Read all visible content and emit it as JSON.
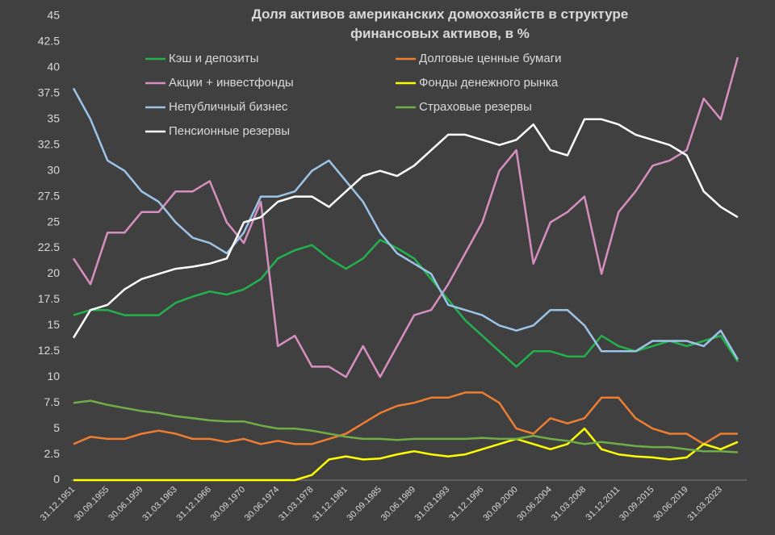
{
  "chart_data": {
    "type": "line",
    "title": "Доля активов американских домохозяйств в структуре финансовых активов, в %",
    "categories": [
      "31.12.1951",
      null,
      "30.09.1955",
      null,
      "30.06.1959",
      null,
      "31.03.1963",
      null,
      "31.12.1966",
      null,
      "30.09.1970",
      null,
      "30.06.1974",
      null,
      "31.03.1978",
      null,
      "31.12.1981",
      null,
      "30.09.1985",
      null,
      "30.06.1989",
      null,
      "31.03.1993",
      null,
      "31.12.1996",
      null,
      "30.09.2000",
      null,
      "30.06.2004",
      null,
      "31.03.2008",
      null,
      "31.12.2011",
      null,
      "30.09.2015",
      null,
      "30.06.2019",
      null,
      "31.03.2023",
      null
    ],
    "ylim": [
      0,
      45
    ],
    "yticks": [
      0,
      2.5,
      5,
      7.5,
      10,
      12.5,
      15,
      17.5,
      20,
      22.5,
      25,
      27.5,
      30,
      32.5,
      35,
      37.5,
      40,
      42.5,
      45
    ],
    "grid": false,
    "series": [
      {
        "name": "Кэш и депозиты",
        "color": "#22b14c",
        "values": [
          16,
          16.5,
          16.5,
          16,
          16,
          16,
          17.2,
          17.8,
          18.3,
          18,
          18.5,
          19.5,
          21.5,
          22.3,
          22.8,
          21.5,
          20.5,
          21.5,
          23.3,
          22.5,
          21.5,
          19.5,
          17.5,
          15.5,
          14,
          12.5,
          11,
          12.5,
          12.5,
          12,
          12,
          14,
          13,
          12.5,
          13,
          13.5,
          13,
          13.5,
          14,
          11.5
        ]
      },
      {
        "name": "Долговые ценные бумаги",
        "color": "#ed7d31",
        "values": [
          3.5,
          4.2,
          4,
          4,
          4.5,
          4.8,
          4.5,
          4,
          4,
          3.7,
          4,
          3.5,
          3.8,
          3.5,
          3.5,
          4,
          4.5,
          5.5,
          6.5,
          7.2,
          7.5,
          8,
          8,
          8.5,
          8.5,
          7.5,
          5,
          4.5,
          6,
          5.5,
          6,
          8,
          8,
          6,
          5,
          4.5,
          4.5,
          3.5,
          4.5,
          4.5
        ]
      },
      {
        "name": "Акции + инвестфонды",
        "color": "#d78fc0",
        "values": [
          21.5,
          19,
          24,
          24,
          26,
          26,
          28,
          28,
          29,
          25,
          23,
          27,
          13,
          14,
          11,
          11,
          10,
          13,
          10,
          13,
          16,
          16.5,
          19,
          22,
          25,
          30,
          32,
          21,
          25,
          26,
          27.5,
          20,
          26,
          28,
          30.5,
          31,
          32,
          37,
          35,
          41
        ]
      },
      {
        "name": "Фонды денежного рынка",
        "color": "#ffff00",
        "values": [
          0,
          0,
          0,
          0,
          0,
          0,
          0,
          0,
          0,
          0,
          0,
          0,
          0,
          0,
          0.5,
          2,
          2.3,
          2,
          2.1,
          2.5,
          2.8,
          2.5,
          2.3,
          2.5,
          3,
          3.5,
          4,
          3.5,
          3,
          3.5,
          5,
          3,
          2.5,
          2.3,
          2.2,
          2,
          2.2,
          3.5,
          3,
          3.7
        ]
      },
      {
        "name": "Непубличный бизнес",
        "color": "#9dc3e6",
        "values": [
          38,
          35,
          31,
          30,
          28,
          27,
          25,
          23.5,
          23,
          22,
          24,
          27.5,
          27.5,
          28,
          30,
          31,
          29,
          27,
          24,
          22,
          21,
          20,
          17,
          16.5,
          16,
          15,
          14.5,
          15,
          16.5,
          16.5,
          15,
          12.5,
          12.5,
          12.5,
          13.5,
          13.5,
          13.5,
          13,
          14.5,
          11.7
        ]
      },
      {
        "name": "Страховые резервы",
        "color": "#70ad47",
        "values": [
          7.5,
          7.7,
          7.3,
          7,
          6.7,
          6.5,
          6.2,
          6,
          5.8,
          5.7,
          5.7,
          5.3,
          5,
          5,
          4.8,
          4.5,
          4.2,
          4,
          4,
          3.9,
          4,
          4,
          4,
          4,
          4.1,
          4,
          4,
          4.3,
          4,
          3.8,
          3.5,
          3.7,
          3.5,
          3.3,
          3.2,
          3.2,
          3,
          2.8,
          2.8,
          2.7
        ]
      },
      {
        "name": "Пенсионные резервы",
        "color": "#ffffff",
        "values": [
          13.8,
          16.5,
          17,
          18.5,
          19.5,
          20,
          20.5,
          20.7,
          21,
          21.5,
          25,
          25.5,
          27,
          27.5,
          27.5,
          26.5,
          28,
          29.5,
          30,
          29.5,
          30.5,
          32,
          33.5,
          33.5,
          33,
          32.5,
          33,
          34.5,
          32,
          31.5,
          35,
          35,
          34.5,
          33.5,
          33,
          32.5,
          31.5,
          28,
          26.5,
          25.5
        ]
      }
    ]
  }
}
